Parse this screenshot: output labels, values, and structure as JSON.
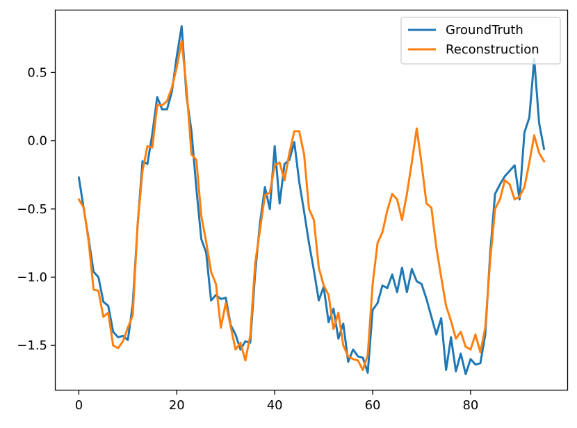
{
  "chart_data": {
    "type": "line",
    "title": "",
    "xlabel": "",
    "ylabel": "",
    "xlim": [
      -4.75,
      99.75
    ],
    "ylim": [
      -1.825,
      0.955
    ],
    "x_ticks": [
      0,
      20,
      40,
      60,
      80
    ],
    "y_ticks": [
      0.5,
      0.0,
      -0.5,
      -1.0,
      -1.5
    ],
    "x_tick_labels": [
      "0",
      "20",
      "40",
      "60",
      "80"
    ],
    "y_tick_labels": [
      "0.5",
      "0.0",
      "−0.5",
      "−1.0",
      "−1.5"
    ],
    "grid": false,
    "legend_position": "top-right",
    "x": [
      0,
      1,
      2,
      3,
      4,
      5,
      6,
      7,
      8,
      9,
      10,
      11,
      12,
      13,
      14,
      15,
      16,
      17,
      18,
      19,
      20,
      21,
      22,
      23,
      24,
      25,
      26,
      27,
      28,
      29,
      30,
      31,
      32,
      33,
      34,
      35,
      36,
      37,
      38,
      39,
      40,
      41,
      42,
      43,
      44,
      45,
      46,
      47,
      48,
      49,
      50,
      51,
      52,
      53,
      54,
      55,
      56,
      57,
      58,
      59,
      60,
      61,
      62,
      63,
      64,
      65,
      66,
      67,
      68,
      69,
      70,
      71,
      72,
      73,
      74,
      75,
      76,
      77,
      78,
      79,
      80,
      81,
      82,
      83,
      84,
      85,
      86,
      87,
      88,
      89,
      90,
      91,
      92,
      93,
      94,
      95
    ],
    "series": [
      {
        "name": "GroundTruth",
        "color": "#1f77b4",
        "values": [
          -0.27,
          -0.5,
          -0.72,
          -0.96,
          -1.0,
          -1.18,
          -1.21,
          -1.4,
          -1.44,
          -1.43,
          -1.46,
          -1.2,
          -0.62,
          -0.15,
          -0.17,
          0.05,
          0.32,
          0.23,
          0.23,
          0.36,
          0.62,
          0.84,
          0.32,
          0.07,
          -0.35,
          -0.72,
          -0.82,
          -1.17,
          -1.13,
          -1.16,
          -1.15,
          -1.35,
          -1.42,
          -1.53,
          -1.47,
          -1.48,
          -0.97,
          -0.6,
          -0.34,
          -0.5,
          -0.04,
          -0.46,
          -0.17,
          -0.14,
          -0.01,
          -0.3,
          -0.52,
          -0.75,
          -0.95,
          -1.17,
          -1.07,
          -1.33,
          -1.23,
          -1.45,
          -1.34,
          -1.62,
          -1.53,
          -1.58,
          -1.59,
          -1.7,
          -1.24,
          -1.19,
          -1.06,
          -1.08,
          -0.98,
          -1.11,
          -0.93,
          -1.11,
          -0.94,
          -1.03,
          -1.05,
          -1.16,
          -1.29,
          -1.42,
          -1.3,
          -1.68,
          -1.44,
          -1.69,
          -1.56,
          -1.71,
          -1.6,
          -1.64,
          -1.63,
          -1.42,
          -0.83,
          -0.39,
          -0.32,
          -0.26,
          -0.22,
          -0.18,
          -0.43,
          0.06,
          0.17,
          0.6,
          0.13,
          -0.06
        ]
      },
      {
        "name": "Reconstruction",
        "color": "#ff7f0e",
        "values": [
          -0.43,
          -0.49,
          -0.74,
          -1.09,
          -1.1,
          -1.29,
          -1.26,
          -1.5,
          -1.52,
          -1.47,
          -1.37,
          -1.28,
          -0.61,
          -0.22,
          -0.04,
          -0.05,
          0.26,
          0.26,
          0.29,
          0.39,
          0.54,
          0.73,
          0.38,
          -0.1,
          -0.14,
          -0.55,
          -0.74,
          -0.96,
          -1.05,
          -1.37,
          -1.19,
          -1.36,
          -1.53,
          -1.48,
          -1.61,
          -1.43,
          -0.9,
          -0.65,
          -0.4,
          -0.38,
          -0.18,
          -0.16,
          -0.29,
          -0.09,
          0.07,
          0.07,
          -0.1,
          -0.5,
          -0.58,
          -0.93,
          -1.06,
          -1.13,
          -1.38,
          -1.26,
          -1.5,
          -1.58,
          -1.6,
          -1.61,
          -1.68,
          -1.57,
          -1.05,
          -0.75,
          -0.67,
          -0.51,
          -0.39,
          -0.43,
          -0.58,
          -0.39,
          -0.16,
          0.09,
          -0.17,
          -0.46,
          -0.49,
          -0.78,
          -1.0,
          -1.21,
          -1.32,
          -1.45,
          -1.4,
          -1.51,
          -1.53,
          -1.42,
          -1.55,
          -1.37,
          -0.88,
          -0.5,
          -0.43,
          -0.29,
          -0.32,
          -0.43,
          -0.41,
          -0.34,
          -0.16,
          0.04,
          -0.09,
          -0.15
        ]
      }
    ]
  }
}
